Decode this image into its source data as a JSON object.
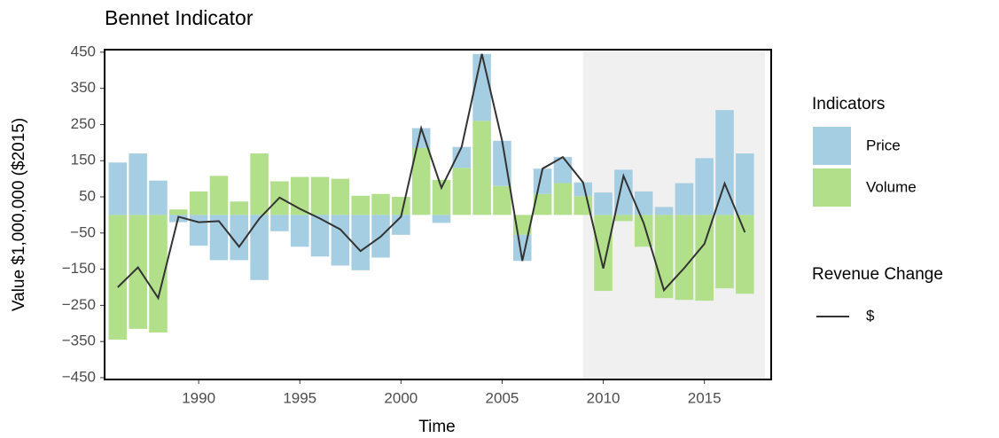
{
  "chart_data": {
    "type": "bar",
    "title": "Bennet Indicator",
    "x_label": "Time",
    "y_label": "Value $1,000,000 ($2015)",
    "x": [
      1986,
      1987,
      1988,
      1989,
      1990,
      1991,
      1992,
      1993,
      1994,
      1995,
      1996,
      1997,
      1998,
      1999,
      2000,
      2001,
      2002,
      2003,
      2004,
      2005,
      2006,
      2007,
      2008,
      2009,
      2010,
      2011,
      2012,
      2013,
      2014,
      2015,
      2016,
      2017
    ],
    "series": [
      {
        "name": "Price",
        "color": "#a6cee3",
        "values": [
          145,
          170,
          95,
          -20,
          -85,
          -125,
          -125,
          -180,
          -45,
          -88,
          -115,
          -140,
          -153,
          -118,
          -55,
          55,
          -22,
          58,
          185,
          125,
          -72,
          70,
          72,
          38,
          62,
          125,
          65,
          22,
          88,
          157,
          290,
          170
        ]
      },
      {
        "name": "Volume",
        "color": "#b2df8a",
        "values": [
          -345,
          -315,
          -325,
          15,
          65,
          108,
          37,
          170,
          93,
          105,
          105,
          100,
          53,
          58,
          50,
          185,
          97,
          130,
          260,
          80,
          -55,
          58,
          88,
          52,
          -210,
          -17,
          -88,
          -230,
          -235,
          -237,
          -203,
          -218
        ]
      }
    ],
    "line_series": {
      "name": "$",
      "color": "#333333",
      "values": [
        -200,
        -145,
        -230,
        -5,
        -20,
        -17,
        -88,
        -10,
        48,
        17,
        -10,
        -40,
        -100,
        -60,
        -5,
        240,
        75,
        188,
        445,
        205,
        -127,
        128,
        160,
        90,
        -148,
        108,
        -23,
        -208,
        -147,
        -80,
        87,
        -48
      ]
    },
    "legend_title": "Indicators",
    "line_legend_title": "Revenue Change",
    "highlight_xlim": [
      2009,
      2018
    ],
    "highlight_color": "#f0f0f0",
    "xlim": [
      1985.35,
      2018.3
    ],
    "xticks": [
      1990,
      1995,
      2000,
      2005,
      2010,
      2015
    ],
    "ylim": [
      -455,
      457
    ],
    "yticks": [
      {
        "value": -450,
        "label": "−450"
      },
      {
        "value": -350,
        "label": "−350"
      },
      {
        "value": -250,
        "label": "−250"
      },
      {
        "value": -150,
        "label": "−150"
      },
      {
        "value": -50,
        "label": "−50"
      },
      50,
      150,
      250,
      350,
      450
    ],
    "grid": false
  }
}
